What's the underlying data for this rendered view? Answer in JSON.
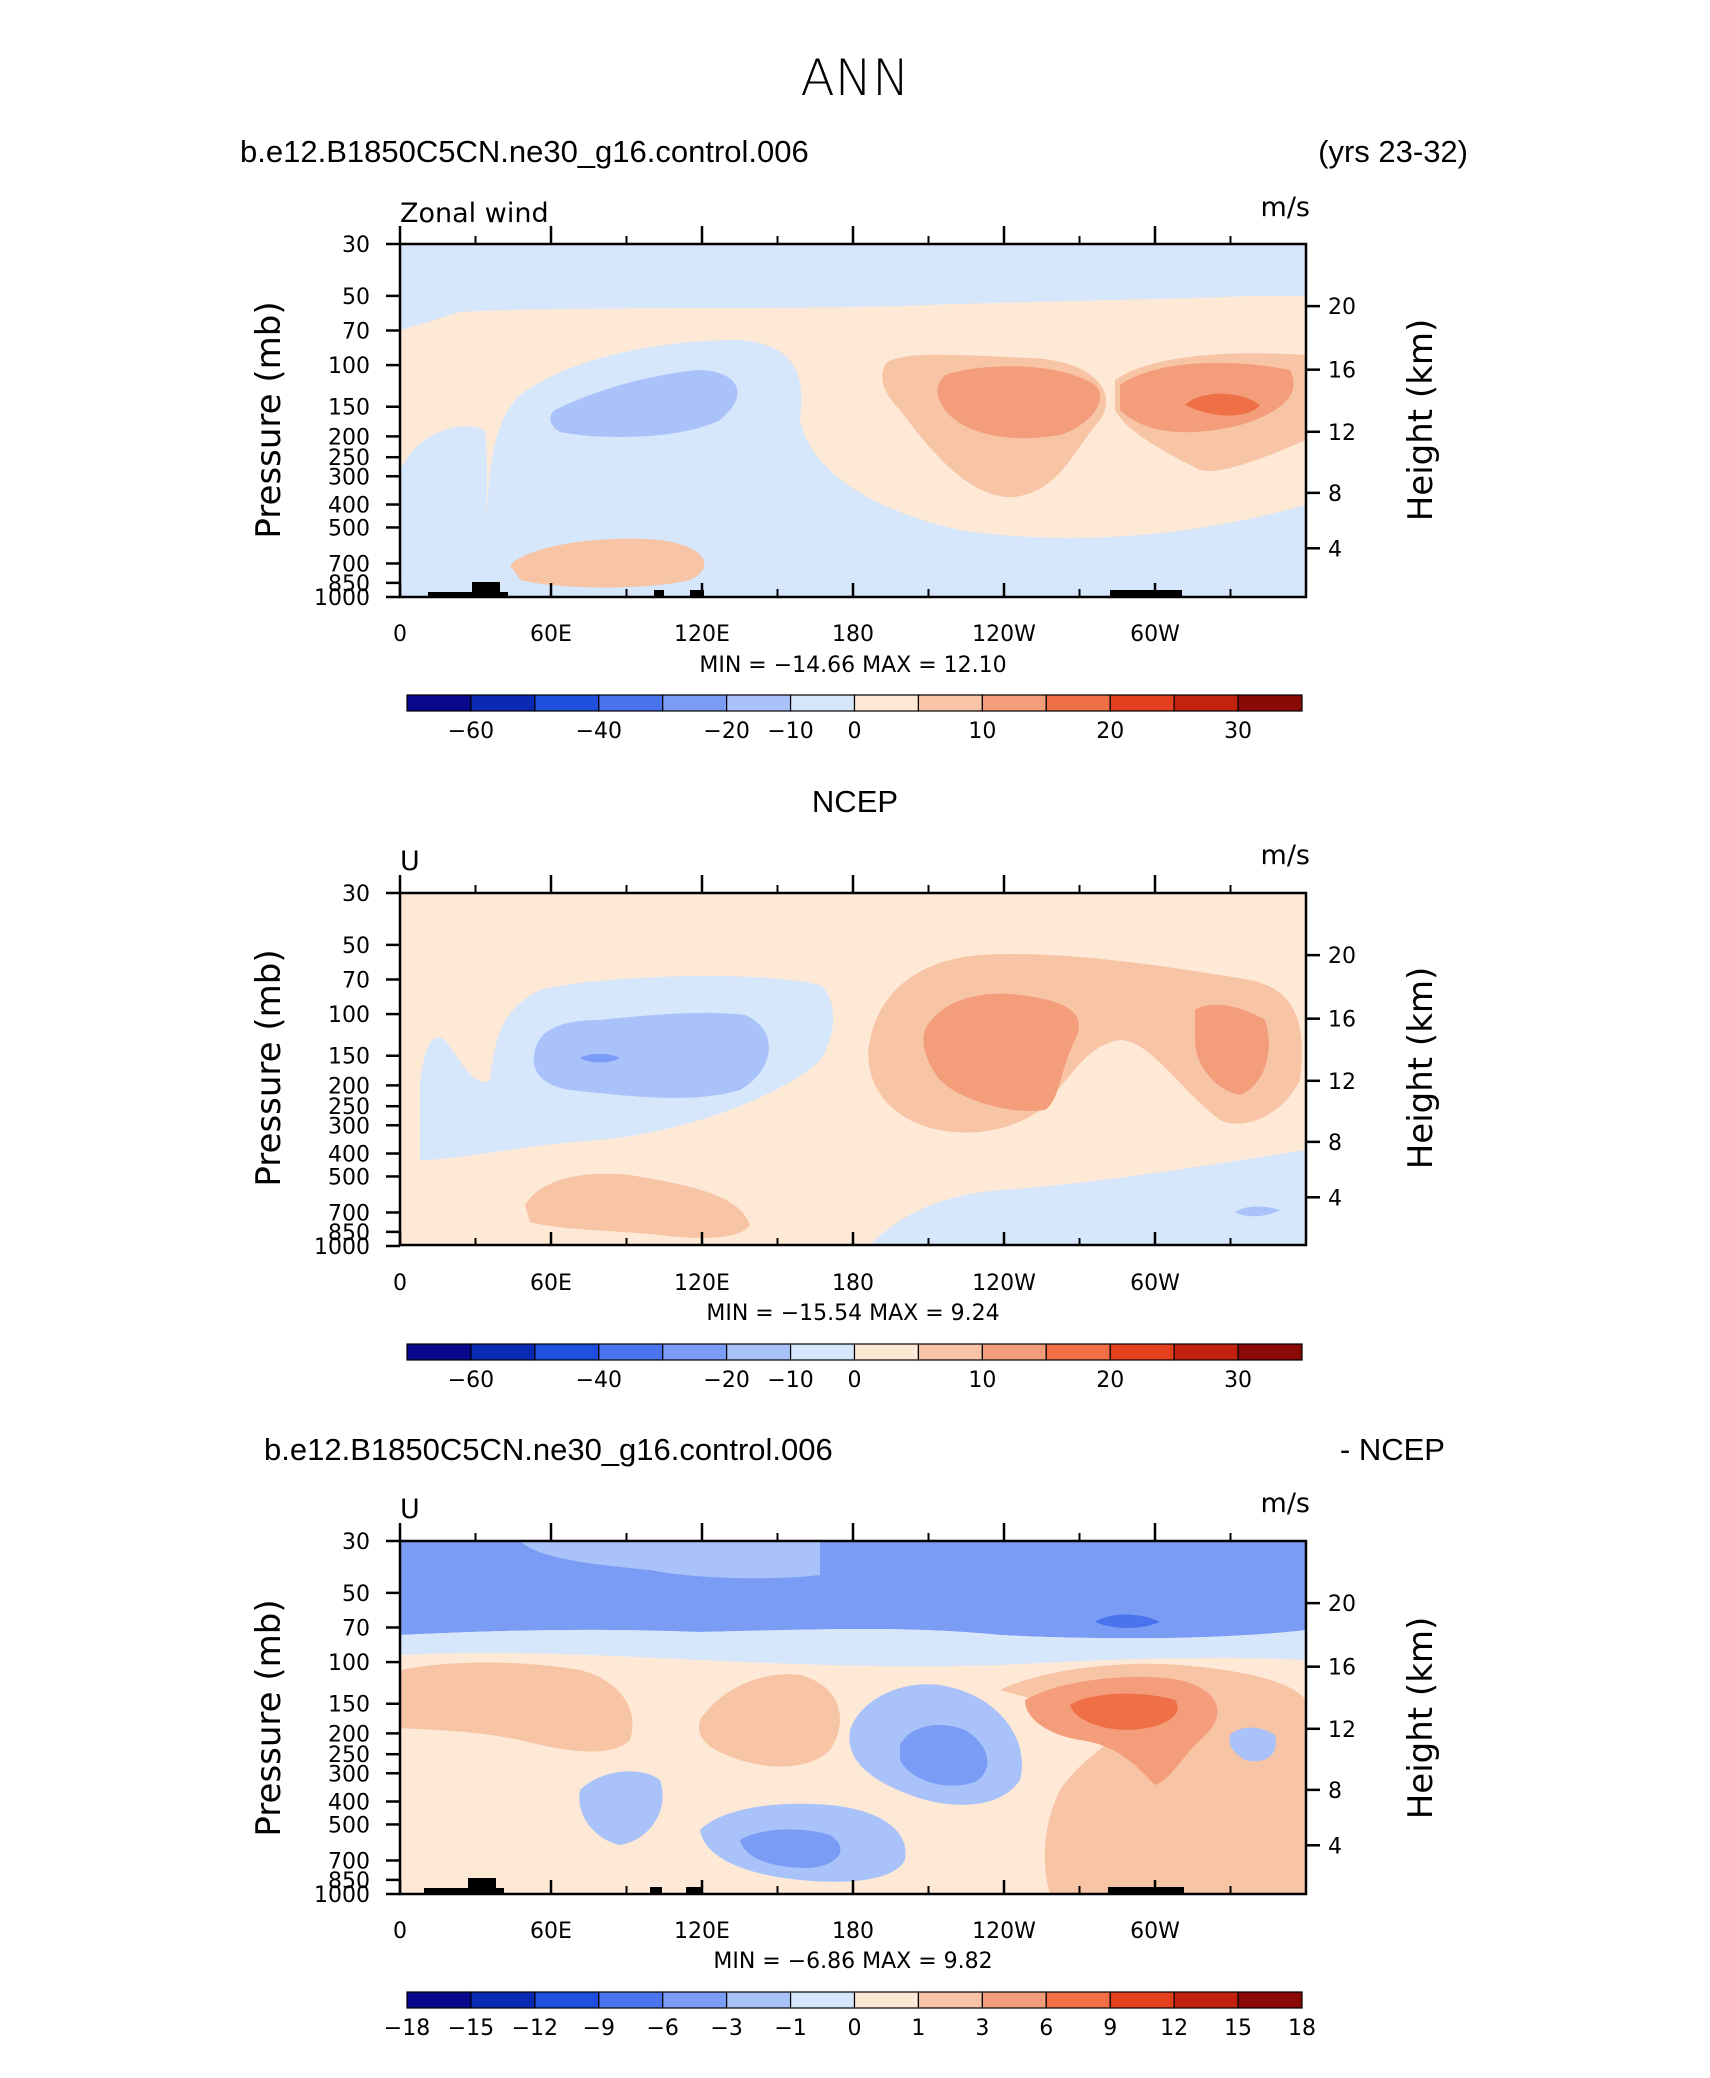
{
  "figure": {
    "title": "ANN"
  },
  "chart_data": [
    {
      "type": "heatmap",
      "title_left": "b.e12.B1850C5CN.ne30_g16.control.006",
      "title_right": "(yrs 23-32)",
      "variable": "Zonal wind",
      "units": "m/s",
      "ylabel": "Pressure (mb)",
      "ylabel_right": "Height (km)",
      "x_ticks": [
        "0",
        "60E",
        "120E",
        "180",
        "120W",
        "60W"
      ],
      "y_ticks": [
        "30",
        "50",
        "70",
        "100",
        "150",
        "200",
        "250",
        "300",
        "400",
        "500",
        "700",
        "850",
        "1000"
      ],
      "y_ticks_right": [
        "20",
        "16",
        "12",
        "8",
        "4"
      ],
      "stats": "MIN = −14.66   MAX =   12.10",
      "min": -14.66,
      "max": 12.1,
      "colorbar_labels": [
        "−60",
        "−40",
        "−20",
        "−10",
        "0",
        "10",
        "20",
        "30"
      ]
    },
    {
      "type": "heatmap",
      "title_center": "NCEP",
      "variable": "U",
      "units": "m/s",
      "ylabel": "Pressure (mb)",
      "ylabel_right": "Height (km)",
      "x_ticks": [
        "0",
        "60E",
        "120E",
        "180",
        "120W",
        "60W"
      ],
      "y_ticks": [
        "30",
        "50",
        "70",
        "100",
        "150",
        "200",
        "250",
        "300",
        "400",
        "500",
        "700",
        "850",
        "1000"
      ],
      "y_ticks_right": [
        "20",
        "16",
        "12",
        "8",
        "4"
      ],
      "stats": "MIN = −15.54   MAX =    9.24",
      "min": -15.54,
      "max": 9.24,
      "colorbar_labels": [
        "−60",
        "−40",
        "−20",
        "−10",
        "0",
        "10",
        "20",
        "30"
      ]
    },
    {
      "type": "heatmap",
      "title_left": "b.e12.B1850C5CN.ne30_g16.control.006",
      "title_right": "- NCEP",
      "variable": "U",
      "units": "m/s",
      "ylabel": "Pressure (mb)",
      "ylabel_right": "Height (km)",
      "x_ticks": [
        "0",
        "60E",
        "120E",
        "180",
        "120W",
        "60W"
      ],
      "y_ticks": [
        "30",
        "50",
        "70",
        "100",
        "150",
        "200",
        "250",
        "300",
        "400",
        "500",
        "700",
        "850",
        "1000"
      ],
      "y_ticks_right": [
        "20",
        "16",
        "12",
        "8",
        "4"
      ],
      "stats": "MIN =    −6.86   MAX =    9.82",
      "min": -6.86,
      "max": 9.82,
      "colorbar_labels": [
        "−18",
        "−15",
        "−12",
        "−9",
        "−6",
        "−3",
        "−1",
        "0",
        "1",
        "3",
        "6",
        "9",
        "12",
        "15",
        "18"
      ]
    }
  ],
  "colormap": [
    "#08088c",
    "#0a2ab4",
    "#1f4fdd",
    "#4a74ee",
    "#7a9cf5",
    "#a9c3fa",
    "#d6e6fb",
    "#fde9d6",
    "#f7c4a6",
    "#f49d7a",
    "#ef6f46",
    "#e2401f",
    "#c2220e",
    "#8a0a05"
  ]
}
